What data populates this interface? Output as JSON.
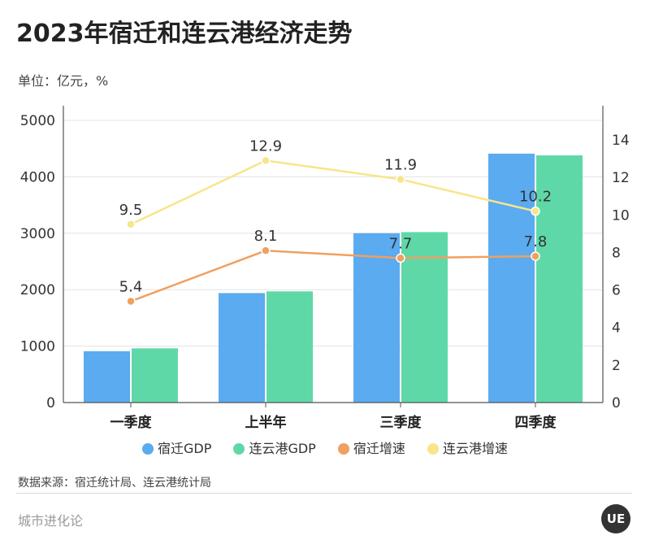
{
  "title": "2023年宿迁和连云港经济走势",
  "unit": "单位：亿元，%",
  "source": "数据来源：宿迁统计局、连云港统计局",
  "brand": "城市进化论",
  "logo_text": "UE",
  "colors": {
    "suqian_gdp": "#5aabf0",
    "lianyungang_gdp": "#5fd8a8",
    "suqian_growth": "#f0a060",
    "lianyungang_growth": "#f7e58c"
  },
  "chart_data": {
    "type": "bar",
    "title": "2023年宿迁和连云港经济走势",
    "categories": [
      "一季度",
      "上半年",
      "三季度",
      "四季度"
    ],
    "ylim_left": [
      0,
      5000
    ],
    "yticks_left": [
      0,
      1000,
      2000,
      3000,
      4000,
      5000
    ],
    "ylim_right": [
      0,
      15
    ],
    "yticks_right": [
      0,
      2,
      4,
      6,
      8,
      10,
      12,
      14
    ],
    "series": [
      {
        "name": "宿迁GDP",
        "type": "bar",
        "axis": "left",
        "values": [
          910,
          1940,
          3000,
          4410
        ]
      },
      {
        "name": "连云港GDP",
        "type": "bar",
        "axis": "left",
        "values": [
          960,
          1970,
          3020,
          4380
        ]
      },
      {
        "name": "宿迁增速",
        "type": "line",
        "axis": "right",
        "values": [
          5.4,
          8.1,
          7.7,
          7.8
        ],
        "labels": [
          "5.4",
          "8.1",
          "7.7",
          "7.8"
        ]
      },
      {
        "name": "连云港增速",
        "type": "line",
        "axis": "right",
        "values": [
          9.5,
          12.9,
          11.9,
          10.2
        ],
        "labels": [
          "9.5",
          "12.9",
          "11.9",
          "10.2"
        ]
      }
    ],
    "legend": [
      "宿迁GDP",
      "连云港GDP",
      "宿迁增速",
      "连云港增速"
    ],
    "legend_position": "bottom",
    "grid": true
  }
}
